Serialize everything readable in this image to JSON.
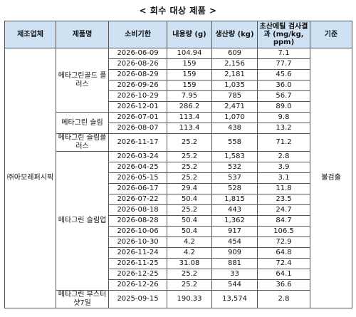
{
  "title": "< 회수 대상 제품 >",
  "columns": [
    "제조업체",
    "제품명",
    "소비기한",
    "내용량 (g)",
    "생산량 (kg)",
    "초산에틸 검사결과 (mg/kg, ppm)",
    "기준"
  ],
  "manufacturer": "㈜아모레퍼시픽",
  "standard": "불검출",
  "groups": [
    {
      "product": "메타그린골드 플러스",
      "rows": [
        {
          "expiry": "2026-06-09",
          "content": "104.94",
          "production": "609",
          "result": "7.1"
        },
        {
          "expiry": "2026-08-26",
          "content": "159",
          "production": "2,156",
          "result": "77.7"
        },
        {
          "expiry": "2026-08-29",
          "content": "159",
          "production": "2,181",
          "result": "45.6"
        },
        {
          "expiry": "2026-09-26",
          "content": "159",
          "production": "1,035",
          "result": "36.0"
        },
        {
          "expiry": "2026-10-29",
          "content": "7.95",
          "production": "785",
          "result": "56.7"
        },
        {
          "expiry": "2026-12-01",
          "content": "286.2",
          "production": "2,471",
          "result": "89.0"
        }
      ]
    },
    {
      "product": "메타그린 슬림",
      "rows": [
        {
          "expiry": "2026-07-01",
          "content": "113.4",
          "production": "1,070",
          "result": "9.8"
        },
        {
          "expiry": "2026-08-07",
          "content": "113.4",
          "production": "438",
          "result": "13.2"
        }
      ]
    },
    {
      "product": "메타그린 슬림플러스",
      "rows": [
        {
          "expiry": "2026-11-17",
          "content": "25.2",
          "production": "558",
          "result": "71.2"
        }
      ]
    },
    {
      "product": "메타그린 슬림업",
      "rows": [
        {
          "expiry": "2026-03-24",
          "content": "25.2",
          "production": "1,583",
          "result": "2.8"
        },
        {
          "expiry": "2026-04-25",
          "content": "25.2",
          "production": "532",
          "result": "3.9"
        },
        {
          "expiry": "2026-05-15",
          "content": "25.2",
          "production": "537",
          "result": "3.1"
        },
        {
          "expiry": "2026-06-17",
          "content": "29.4",
          "production": "528",
          "result": "11.8"
        },
        {
          "expiry": "2026-07-22",
          "content": "50.4",
          "production": "1,815",
          "result": "23.5"
        },
        {
          "expiry": "2026-08-18",
          "content": "25.2",
          "production": "443",
          "result": "24.7"
        },
        {
          "expiry": "2026-08-28",
          "content": "50.4",
          "production": "1,362",
          "result": "84.7"
        },
        {
          "expiry": "2026-10-06",
          "content": "50.4",
          "production": "917",
          "result": "106.5"
        },
        {
          "expiry": "2026-10-30",
          "content": "4.2",
          "production": "454",
          "result": "72.9"
        },
        {
          "expiry": "2026-11-24",
          "content": "4.2",
          "production": "909",
          "result": "64.8"
        },
        {
          "expiry": "2026-11-25",
          "content": "31.08",
          "production": "881",
          "result": "72.4"
        },
        {
          "expiry": "2026-12-25",
          "content": "25.2",
          "production": "33",
          "result": "64.1"
        },
        {
          "expiry": "2026-12-26",
          "content": "25.2",
          "production": "544",
          "result": "36.6"
        }
      ]
    },
    {
      "product": "메타그린 부스터샷7일",
      "rows": [
        {
          "expiry": "2025-09-15",
          "content": "190.33",
          "production": "13,574",
          "result": "2.8"
        }
      ]
    }
  ]
}
